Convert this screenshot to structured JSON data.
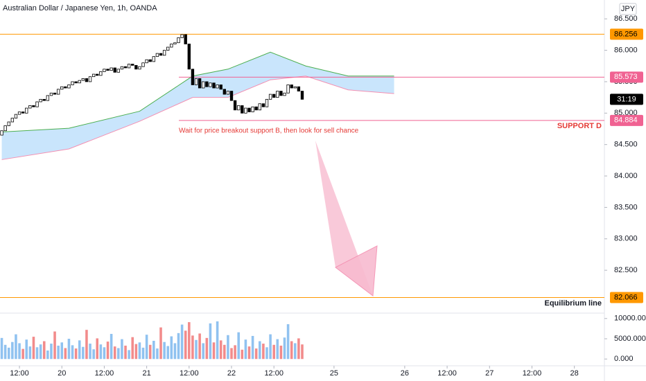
{
  "chart_data": {
    "type": "candlestick",
    "title": "Australian Dollar / Japanese Yen, 1h, OANDA",
    "currency": "JPY",
    "xlim": [
      -0.5,
      170.5
    ],
    "xticks": [
      {
        "value": 5,
        "label": "12:00"
      },
      {
        "value": 17,
        "label": "20"
      },
      {
        "value": 29,
        "label": "12:00"
      },
      {
        "value": 41,
        "label": "21"
      },
      {
        "value": 53,
        "label": "12:00"
      },
      {
        "value": 65,
        "label": "22"
      },
      {
        "value": 77,
        "label": "12:00"
      },
      {
        "value": 94,
        "label": "25"
      },
      {
        "value": 114,
        "label": "26"
      },
      {
        "value": 126,
        "label": "12:00"
      },
      {
        "value": 138,
        "label": "27"
      },
      {
        "value": 150,
        "label": "12:00"
      },
      {
        "value": 162,
        "label": "28"
      }
    ],
    "ylim": [
      81.84,
      86.8
    ],
    "yticks": [
      {
        "value": 86.5,
        "label": "86.500"
      },
      {
        "value": 86,
        "label": "86.000"
      },
      {
        "value": 85.5,
        "label": "85.500"
      },
      {
        "value": 85,
        "label": "85.000"
      },
      {
        "value": 84.5,
        "label": "84.500"
      },
      {
        "value": 84,
        "label": "84.000"
      },
      {
        "value": 83.5,
        "label": "83.500"
      },
      {
        "value": 83,
        "label": "83.000"
      },
      {
        "value": 82.5,
        "label": "82.500"
      }
    ],
    "up_color": "#ffffff",
    "down_color": "#000000",
    "open": [
      84.65,
      84.72,
      84.8,
      84.86,
      84.92,
      84.98,
      85.02,
      85.0,
      85.08,
      85.12,
      85.1,
      85.18,
      85.22,
      85.2,
      85.28,
      85.32,
      85.3,
      85.38,
      85.42,
      85.4,
      85.45,
      85.5,
      85.48,
      85.52,
      85.55,
      85.5,
      85.58,
      85.62,
      85.6,
      85.66,
      85.7,
      85.68,
      85.72,
      85.65,
      85.7,
      85.74,
      85.72,
      85.78,
      85.76,
      85.7,
      85.74,
      85.8,
      85.85,
      85.82,
      85.9,
      85.95,
      85.92,
      86.0,
      86.05,
      86.1,
      86.12,
      86.2,
      86.25,
      86.1,
      85.7,
      85.45,
      85.55,
      85.4,
      85.5,
      85.42,
      85.48,
      85.4,
      85.45,
      85.38,
      85.3,
      85.35,
      85.2,
      85.05,
      85.12,
      85.0,
      85.08,
      85.02,
      85.1,
      85.05,
      85.15,
      85.1,
      85.22,
      85.3,
      85.25,
      85.35,
      85.28,
      85.32,
      85.45,
      85.4,
      85.42,
      85.35
    ],
    "close": [
      84.72,
      84.8,
      84.86,
      84.92,
      84.98,
      85.02,
      85.0,
      85.08,
      85.12,
      85.1,
      85.18,
      85.22,
      85.2,
      85.28,
      85.32,
      85.3,
      85.38,
      85.42,
      85.4,
      85.45,
      85.5,
      85.48,
      85.52,
      85.55,
      85.5,
      85.58,
      85.62,
      85.6,
      85.66,
      85.7,
      85.68,
      85.72,
      85.65,
      85.7,
      85.74,
      85.72,
      85.78,
      85.76,
      85.7,
      85.74,
      85.8,
      85.85,
      85.82,
      85.9,
      85.95,
      85.92,
      86.0,
      86.05,
      86.1,
      86.12,
      86.2,
      86.25,
      86.1,
      85.7,
      85.45,
      85.55,
      85.4,
      85.5,
      85.42,
      85.48,
      85.4,
      85.45,
      85.38,
      85.3,
      85.35,
      85.2,
      85.05,
      85.12,
      85.0,
      85.08,
      85.02,
      85.1,
      85.05,
      85.15,
      85.1,
      85.22,
      85.3,
      85.25,
      85.35,
      85.28,
      85.32,
      85.45,
      85.4,
      85.42,
      85.35,
      85.22
    ],
    "cloud": {
      "color": "#bbdefb",
      "x": [
        0,
        19,
        39,
        54,
        64,
        76,
        86,
        98,
        111
      ],
      "upper": [
        84.7,
        84.76,
        85.03,
        85.59,
        85.7,
        85.97,
        85.75,
        85.59,
        85.59
      ],
      "lower": [
        84.26,
        84.43,
        84.87,
        85.25,
        85.25,
        85.53,
        85.59,
        85.37,
        85.31
      ]
    },
    "levels": [
      {
        "value": 86.256,
        "color": "#ff9800"
      },
      {
        "value": 85.573,
        "color": "#f06292"
      },
      {
        "value": 84.884,
        "color": "#f06292"
      },
      {
        "value": 82.066,
        "color": "#ff9800"
      }
    ],
    "countdown": "31:19",
    "annotations": [
      "Wait for price breakout support B, then look for sell chance",
      "SUPPORT D",
      "Equilibrium line"
    ],
    "volume": {
      "ylim": [
        -1667,
        11333
      ],
      "yticks": [
        {
          "value": 10000,
          "label": "10000.000"
        },
        {
          "value": 5000,
          "label": "5000.000"
        },
        {
          "value": 0,
          "label": "0.000"
        }
      ],
      "up_color": "#90c2f0",
      "down_color": "#f28b8b",
      "values": [
        5200,
        3500,
        2800,
        4200,
        6100,
        3900,
        2500,
        4800,
        3100,
        5500,
        2900,
        3600,
        4400,
        2100,
        3800,
        6800,
        3300,
        4100,
        2700,
        5000,
        3400,
        2600,
        4600,
        3000,
        7200,
        3800,
        2400,
        5100,
        3600,
        2900,
        4300,
        6200,
        3100,
        2700,
        4900,
        3300,
        2200,
        5400,
        3700,
        4100,
        2800,
        6000,
        3500,
        4500,
        2600,
        7800,
        4200,
        3200,
        5600,
        3900,
        6400,
        8500,
        7000,
        9100,
        5800,
        4700,
        6300,
        3900,
        5200,
        8800,
        4100,
        9300,
        4600,
        3500,
        5900,
        2700,
        3400,
        6600,
        2300,
        4800,
        3100,
        5700,
        2600,
        4400,
        3800,
        2900,
        6100,
        3500,
        4900,
        3300,
        5300,
        8600,
        4400,
        3900,
        5100,
        3600
      ]
    }
  }
}
